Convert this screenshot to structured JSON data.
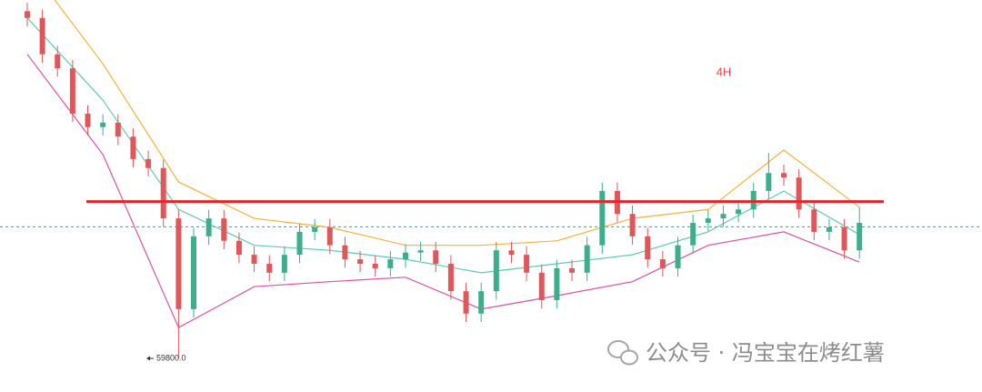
{
  "chart_data": {
    "type": "candlestick",
    "annotation": "4H",
    "xlim": [
      -1.8,
      63.1
    ],
    "ylim": [
      59200,
      66200
    ],
    "up_color": "#3dae8c",
    "down_color": "#e0575b",
    "open": [
      66000,
      65880,
      65230,
      64980,
      64170,
      63930,
      64010,
      63760,
      63360,
      63200,
      62300,
      60680,
      61980,
      62300,
      61900,
      61650,
      61490,
      61330,
      61650,
      62060,
      62140,
      61820,
      61570,
      61490,
      61410,
      61570,
      61690,
      61730,
      61490,
      61000,
      60600,
      61000,
      61730,
      61650,
      61330,
      60840,
      61410,
      61330,
      61820,
      62790,
      62380,
      61980,
      61570,
      61410,
      61820,
      62220,
      62300,
      62380,
      62460,
      62790,
      63110,
      63030,
      62460,
      62060,
      62140,
      61730
    ],
    "high": [
      66150,
      66030,
      65380,
      65130,
      64320,
      64160,
      64160,
      63910,
      63510,
      63350,
      62450,
      62130,
      62450,
      62450,
      62050,
      61800,
      61640,
      61800,
      62210,
      62290,
      62290,
      61970,
      61720,
      61640,
      61720,
      61840,
      61880,
      61880,
      61640,
      61150,
      61150,
      61880,
      61880,
      61800,
      61480,
      61560,
      61560,
      61970,
      62940,
      62940,
      62530,
      62130,
      61720,
      61970,
      62370,
      62450,
      62530,
      62610,
      62940,
      63470,
      63260,
      63180,
      62610,
      62290,
      62290,
      62500
    ],
    "low": [
      65730,
      65080,
      64830,
      64020,
      63780,
      63780,
      63610,
      63210,
      63050,
      62150,
      59800,
      60530,
      61830,
      61750,
      61500,
      61340,
      61180,
      61180,
      61500,
      61910,
      61670,
      61420,
      61340,
      61260,
      61260,
      61420,
      61540,
      61340,
      60850,
      60450,
      60450,
      60850,
      61500,
      61180,
      60690,
      60690,
      61180,
      61180,
      61670,
      62230,
      61830,
      61420,
      61260,
      61260,
      61670,
      62070,
      62150,
      62230,
      62310,
      62640,
      62880,
      62310,
      61910,
      61910,
      61580,
      61580
    ],
    "close": [
      65880,
      65230,
      64980,
      64170,
      63930,
      64010,
      63760,
      63360,
      63200,
      62300,
      60680,
      61980,
      62300,
      61900,
      61650,
      61490,
      61330,
      61650,
      62060,
      62140,
      61820,
      61570,
      61490,
      61410,
      61570,
      61690,
      61730,
      61490,
      61000,
      60600,
      61000,
      61730,
      61650,
      61330,
      60840,
      61410,
      61330,
      61820,
      62790,
      62380,
      61980,
      61570,
      61410,
      61820,
      62220,
      62300,
      62380,
      62460,
      62790,
      63110,
      63030,
      62460,
      62060,
      62140,
      61730,
      62220
    ],
    "bands": {
      "x": [
        0,
        5,
        10,
        15,
        20,
        25,
        30,
        35,
        40,
        45,
        50,
        55
      ],
      "series": [
        {
          "color": "#f3b23c",
          "values": [
            66850,
            65060,
            62950,
            62300,
            62140,
            61820,
            61820,
            61900,
            62300,
            62460,
            63520,
            62500
          ]
        },
        {
          "color": "#5fcbb0",
          "values": [
            65880,
            64410,
            62460,
            61820,
            61730,
            61570,
            61330,
            61490,
            61650,
            62060,
            62790,
            62010
          ]
        },
        {
          "color": "#d653a6",
          "values": [
            65230,
            63440,
            60350,
            61080,
            61170,
            61250,
            60680,
            60920,
            61170,
            61820,
            62060,
            61520
          ]
        }
      ]
    },
    "resistance": {
      "value": 62600,
      "color": "#e3262b"
    },
    "last_price": {
      "value": 62150,
      "color": "#3aa38f"
    },
    "low_label": {
      "value": 59800,
      "label": "59800.0"
    }
  },
  "watermark": "公众号 · 冯宝宝在烤红薯"
}
